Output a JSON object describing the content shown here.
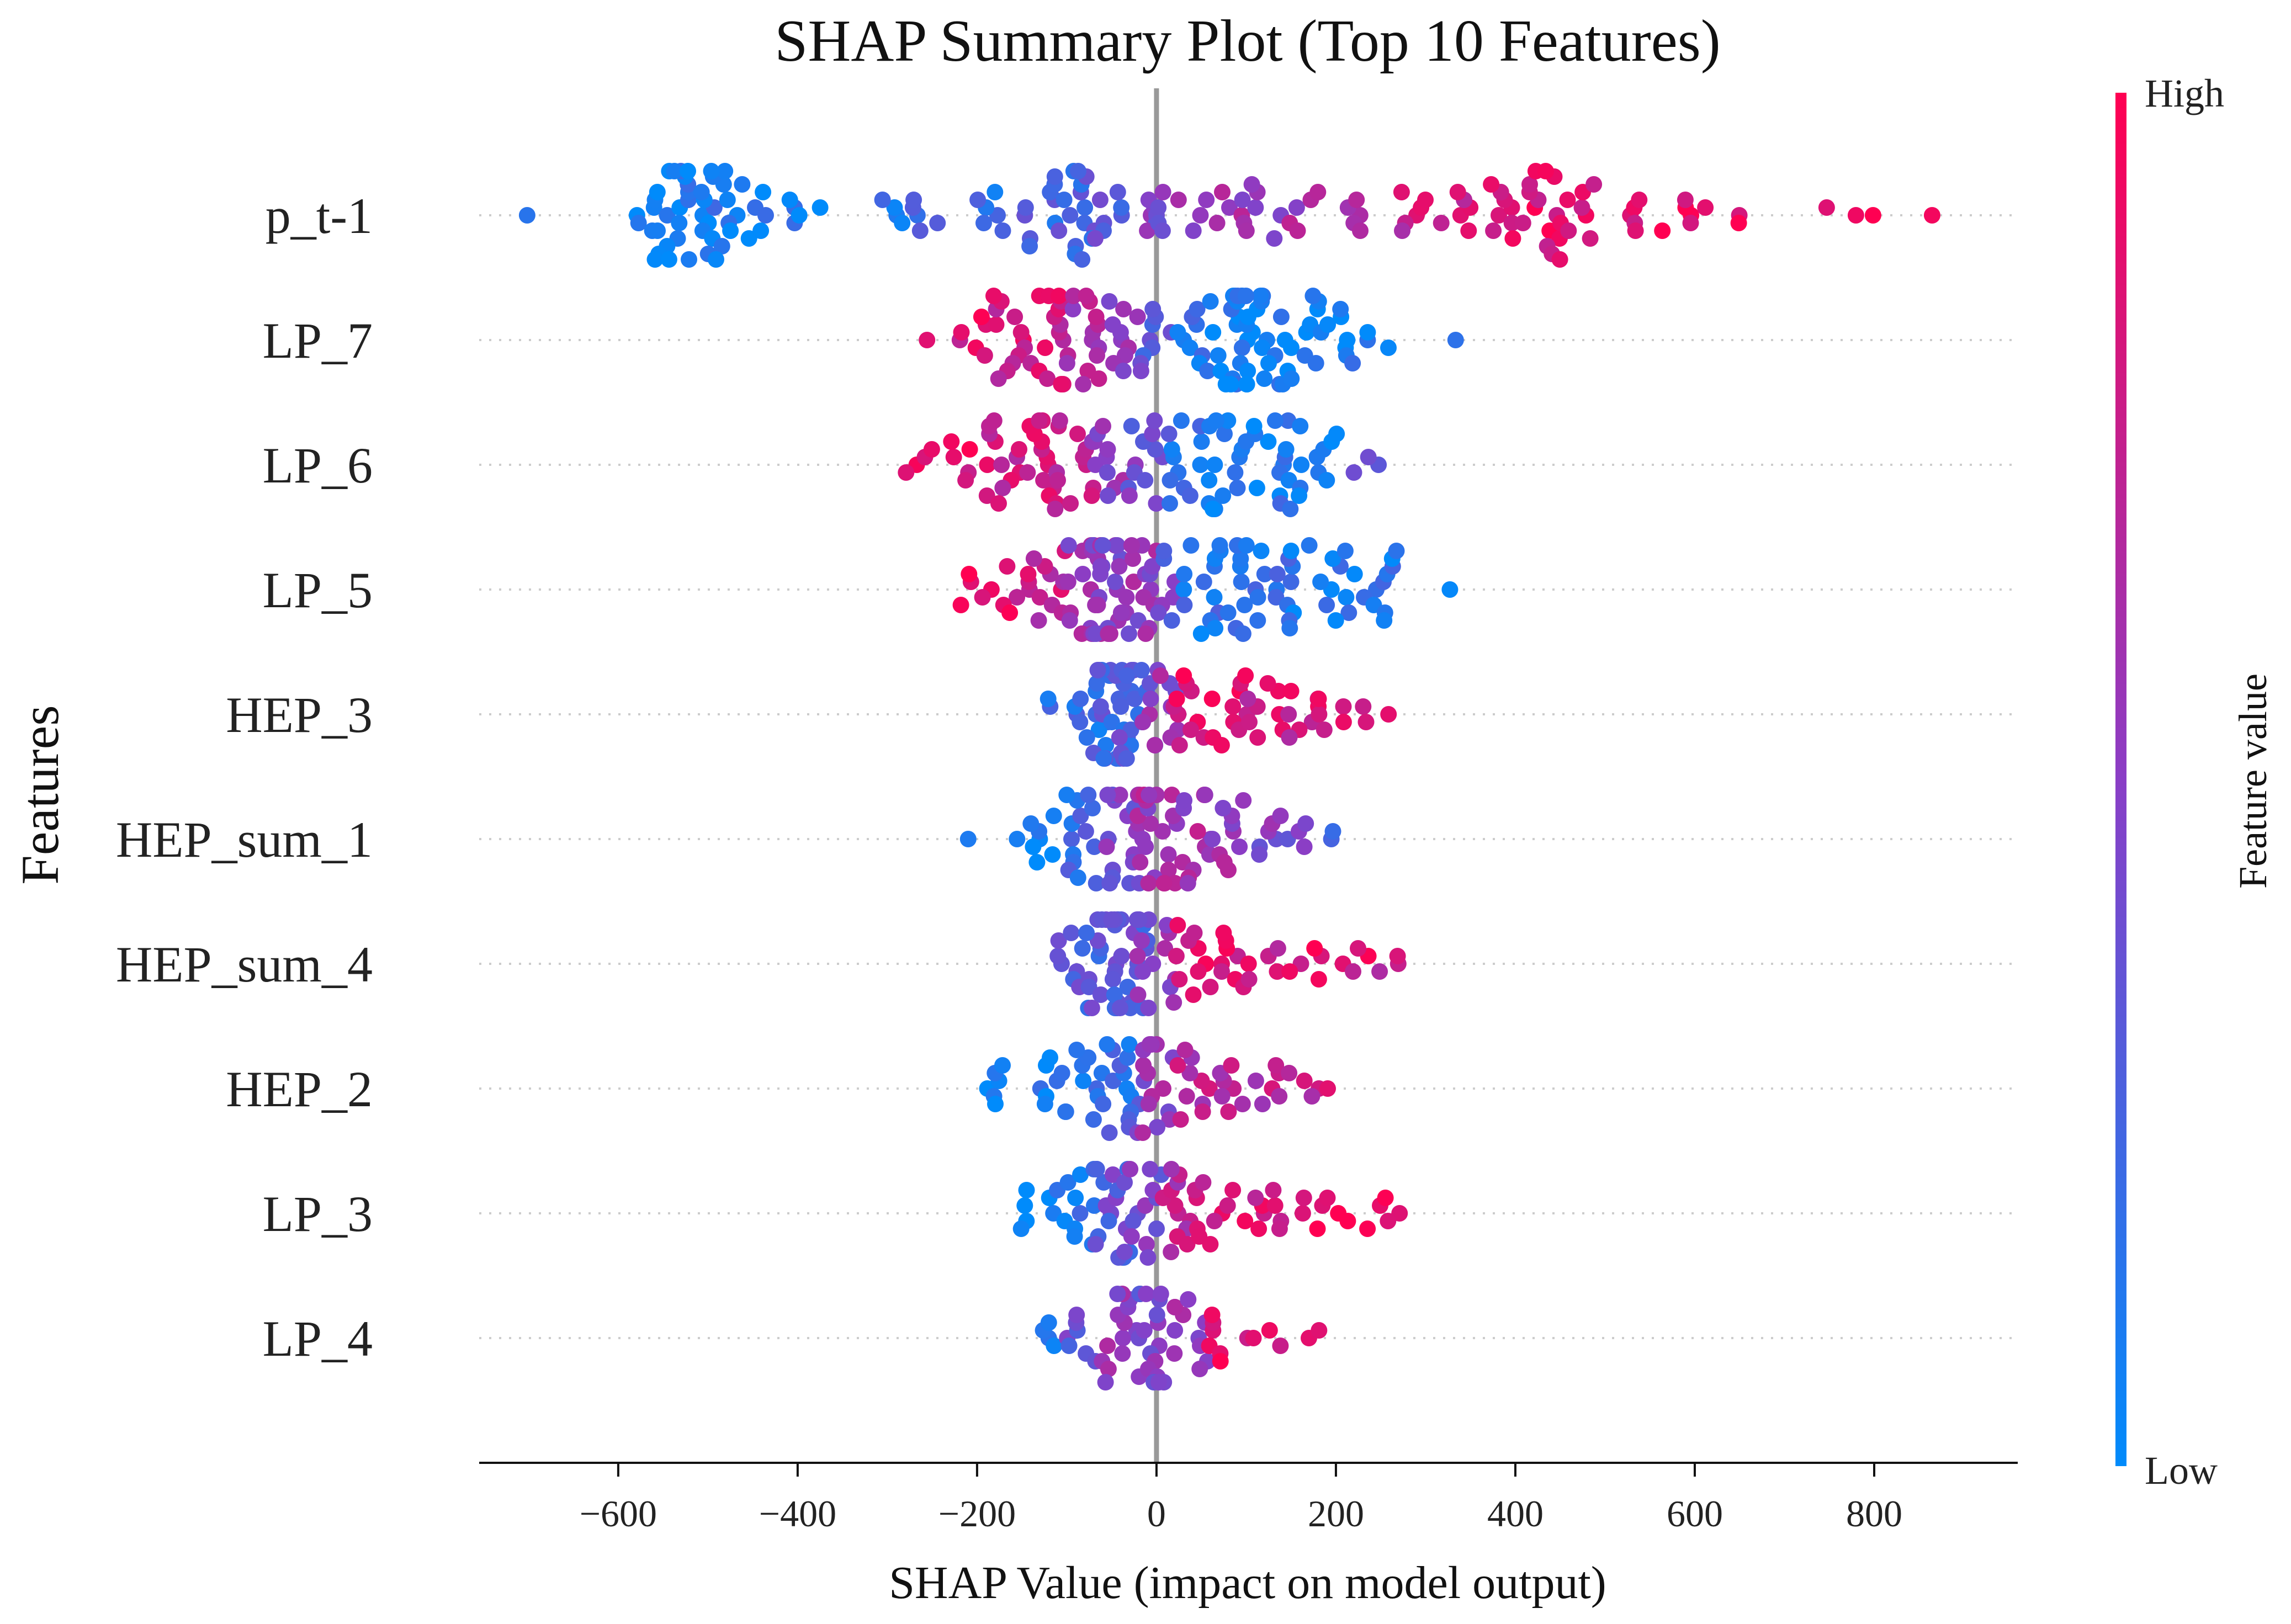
{
  "chart_data": {
    "type": "scatter",
    "subtype": "beeswarm",
    "title": "SHAP Summary Plot (Top 10 Features)",
    "xlabel": "SHAP Value (impact on model output)",
    "ylabel": "Features",
    "xlim": [
      -755,
      960
    ],
    "xticks": [
      -600,
      -400,
      -200,
      0,
      200,
      400,
      600,
      800
    ],
    "xtick_labels": [
      "−600",
      "−400",
      "−200",
      "0",
      "200",
      "400",
      "600",
      "800"
    ],
    "zero_line": 0,
    "colorbar": {
      "label": "Feature value",
      "high_label": "High",
      "low_label": "Low",
      "low_color": "#008bfb",
      "mid_color": "#8a3ec6",
      "high_color": "#ff0052"
    },
    "features": [
      {
        "name": "p_t-1",
        "bins": [
          [
            -680,
            1,
            0.02
          ],
          [
            -570,
            6,
            0.06
          ],
          [
            -540,
            18,
            0.08
          ],
          [
            -500,
            14,
            0.1
          ],
          [
            -460,
            8,
            0.08
          ],
          [
            -420,
            5,
            0.08
          ],
          [
            -380,
            2,
            0.08
          ],
          [
            -300,
            4,
            0.12
          ],
          [
            -250,
            5,
            0.18
          ],
          [
            -180,
            6,
            0.2
          ],
          [
            -130,
            10,
            0.25
          ],
          [
            -90,
            14,
            0.25
          ],
          [
            -50,
            7,
            0.35
          ],
          [
            -20,
            5,
            0.45
          ],
          [
            20,
            6,
            0.5
          ],
          [
            60,
            6,
            0.55
          ],
          [
            110,
            8,
            0.58
          ],
          [
            160,
            6,
            0.6
          ],
          [
            220,
            5,
            0.62
          ],
          [
            280,
            6,
            0.75
          ],
          [
            330,
            6,
            0.8
          ],
          [
            380,
            8,
            0.85
          ],
          [
            430,
            14,
            0.88
          ],
          [
            470,
            8,
            0.88
          ],
          [
            520,
            5,
            0.88
          ],
          [
            580,
            5,
            0.9
          ],
          [
            630,
            3,
            0.95
          ],
          [
            760,
            2,
            1.0
          ],
          [
            800,
            1,
            1.0
          ],
          [
            880,
            1,
            1.0
          ]
        ]
      },
      {
        "name": "LP_7",
        "bins": [
          [
            -255,
            1,
            0.95
          ],
          [
            -200,
            6,
            0.85
          ],
          [
            -160,
            12,
            0.8
          ],
          [
            -120,
            16,
            0.8
          ],
          [
            -80,
            14,
            0.65
          ],
          [
            -40,
            10,
            0.55
          ],
          [
            0,
            9,
            0.35
          ],
          [
            40,
            10,
            0.15
          ],
          [
            80,
            20,
            0.05
          ],
          [
            120,
            18,
            0.05
          ],
          [
            160,
            12,
            0.08
          ],
          [
            200,
            8,
            0.05
          ],
          [
            250,
            3,
            0.05
          ],
          [
            335,
            1,
            0.02
          ]
        ]
      },
      {
        "name": "LP_6",
        "bins": [
          [
            -265,
            4,
            0.95
          ],
          [
            -210,
            6,
            0.9
          ],
          [
            -170,
            12,
            0.8
          ],
          [
            -130,
            14,
            0.78
          ],
          [
            -90,
            12,
            0.7
          ],
          [
            -50,
            10,
            0.55
          ],
          [
            -10,
            12,
            0.4
          ],
          [
            30,
            12,
            0.2
          ],
          [
            80,
            15,
            0.08
          ],
          [
            130,
            14,
            0.1
          ],
          [
            180,
            10,
            0.1
          ],
          [
            240,
            3,
            0.3
          ]
        ]
      },
      {
        "name": "LP_5",
        "bins": [
          [
            -200,
            5,
            0.95
          ],
          [
            -160,
            7,
            0.85
          ],
          [
            -120,
            10,
            0.75
          ],
          [
            -80,
            18,
            0.55
          ],
          [
            -50,
            22,
            0.5
          ],
          [
            -20,
            14,
            0.55
          ],
          [
            10,
            10,
            0.4
          ],
          [
            50,
            14,
            0.15
          ],
          [
            100,
            14,
            0.15
          ],
          [
            150,
            12,
            0.15
          ],
          [
            200,
            10,
            0.1
          ],
          [
            250,
            10,
            0.1
          ],
          [
            310,
            1,
            0.1
          ]
        ]
      },
      {
        "name": "HEP_3",
        "bins": [
          [
            -100,
            4,
            0.2
          ],
          [
            -70,
            12,
            0.2
          ],
          [
            -45,
            22,
            0.25
          ],
          [
            -20,
            14,
            0.3
          ],
          [
            5,
            10,
            0.55
          ],
          [
            40,
            10,
            0.85
          ],
          [
            80,
            10,
            0.85
          ],
          [
            120,
            8,
            0.8
          ],
          [
            160,
            7,
            0.8
          ],
          [
            200,
            5,
            0.85
          ],
          [
            245,
            3,
            0.9
          ]
        ]
      },
      {
        "name": "HEP_sum_1",
        "bins": [
          [
            -205,
            1,
            0.05
          ],
          [
            -165,
            1,
            0.05
          ],
          [
            -120,
            7,
            0.1
          ],
          [
            -80,
            14,
            0.2
          ],
          [
            -40,
            18,
            0.45
          ],
          [
            0,
            20,
            0.6
          ],
          [
            40,
            14,
            0.6
          ],
          [
            80,
            10,
            0.55
          ],
          [
            120,
            6,
            0.45
          ],
          [
            160,
            4,
            0.4
          ],
          [
            190,
            2,
            0.3
          ]
        ]
      },
      {
        "name": "HEP_sum_4",
        "bins": [
          [
            -95,
            8,
            0.3
          ],
          [
            -60,
            22,
            0.3
          ],
          [
            -30,
            20,
            0.35
          ],
          [
            0,
            12,
            0.5
          ],
          [
            40,
            10,
            0.85
          ],
          [
            80,
            8,
            0.85
          ],
          [
            120,
            5,
            0.8
          ],
          [
            170,
            5,
            0.9
          ],
          [
            220,
            4,
            0.85
          ],
          [
            270,
            3,
            0.75
          ]
        ]
      },
      {
        "name": "HEP_2",
        "bins": [
          [
            -170,
            6,
            0.05
          ],
          [
            -120,
            8,
            0.1
          ],
          [
            -80,
            10,
            0.12
          ],
          [
            -40,
            14,
            0.2
          ],
          [
            0,
            16,
            0.55
          ],
          [
            40,
            10,
            0.7
          ],
          [
            80,
            7,
            0.65
          ],
          [
            120,
            6,
            0.7
          ],
          [
            160,
            4,
            0.75
          ],
          [
            200,
            1,
            0.9
          ]
        ]
      },
      {
        "name": "LP_3",
        "bins": [
          [
            -130,
            6,
            0.1
          ],
          [
            -90,
            10,
            0.15
          ],
          [
            -50,
            18,
            0.35
          ],
          [
            -15,
            14,
            0.45
          ],
          [
            20,
            12,
            0.7
          ],
          [
            60,
            9,
            0.8
          ],
          [
            100,
            6,
            0.8
          ],
          [
            150,
            6,
            0.85
          ],
          [
            200,
            5,
            0.95
          ],
          [
            250,
            5,
            0.95
          ]
        ]
      },
      {
        "name": "LP_4",
        "bins": [
          [
            -130,
            4,
            0.15
          ],
          [
            -80,
            7,
            0.4
          ],
          [
            -40,
            14,
            0.55
          ],
          [
            0,
            18,
            0.45
          ],
          [
            40,
            10,
            0.55
          ],
          [
            80,
            7,
            0.85
          ],
          [
            120,
            3,
            0.85
          ],
          [
            180,
            2,
            0.85
          ]
        ]
      }
    ]
  }
}
